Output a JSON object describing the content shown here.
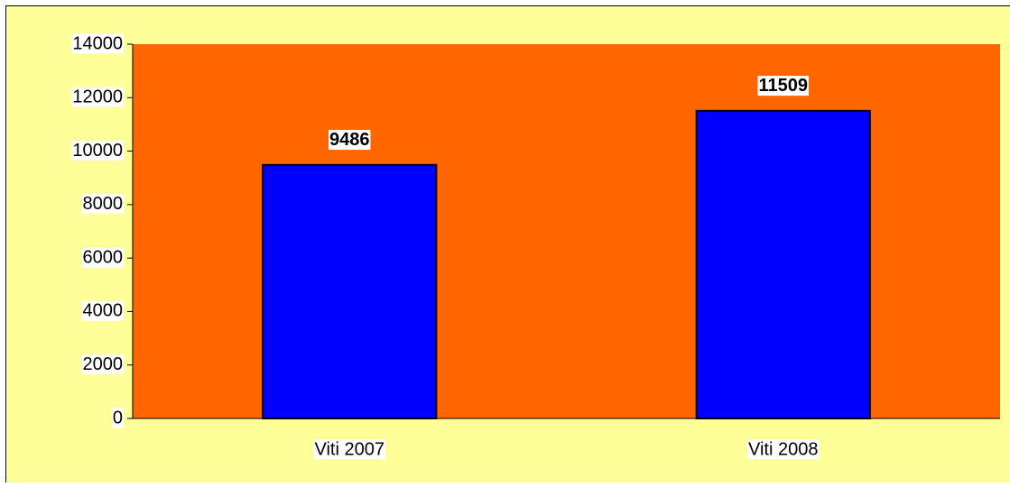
{
  "chart_data": {
    "type": "bar",
    "categories": [
      "Viti 2007",
      "Viti 2008"
    ],
    "values": [
      9486,
      11509
    ],
    "color": "#0000ff",
    "plot_background": "#ff6600",
    "background": "#ffff99",
    "ylim": [
      0,
      14000
    ],
    "yticks": [
      0,
      2000,
      4000,
      6000,
      8000,
      10000,
      12000,
      14000
    ],
    "grid": false
  }
}
